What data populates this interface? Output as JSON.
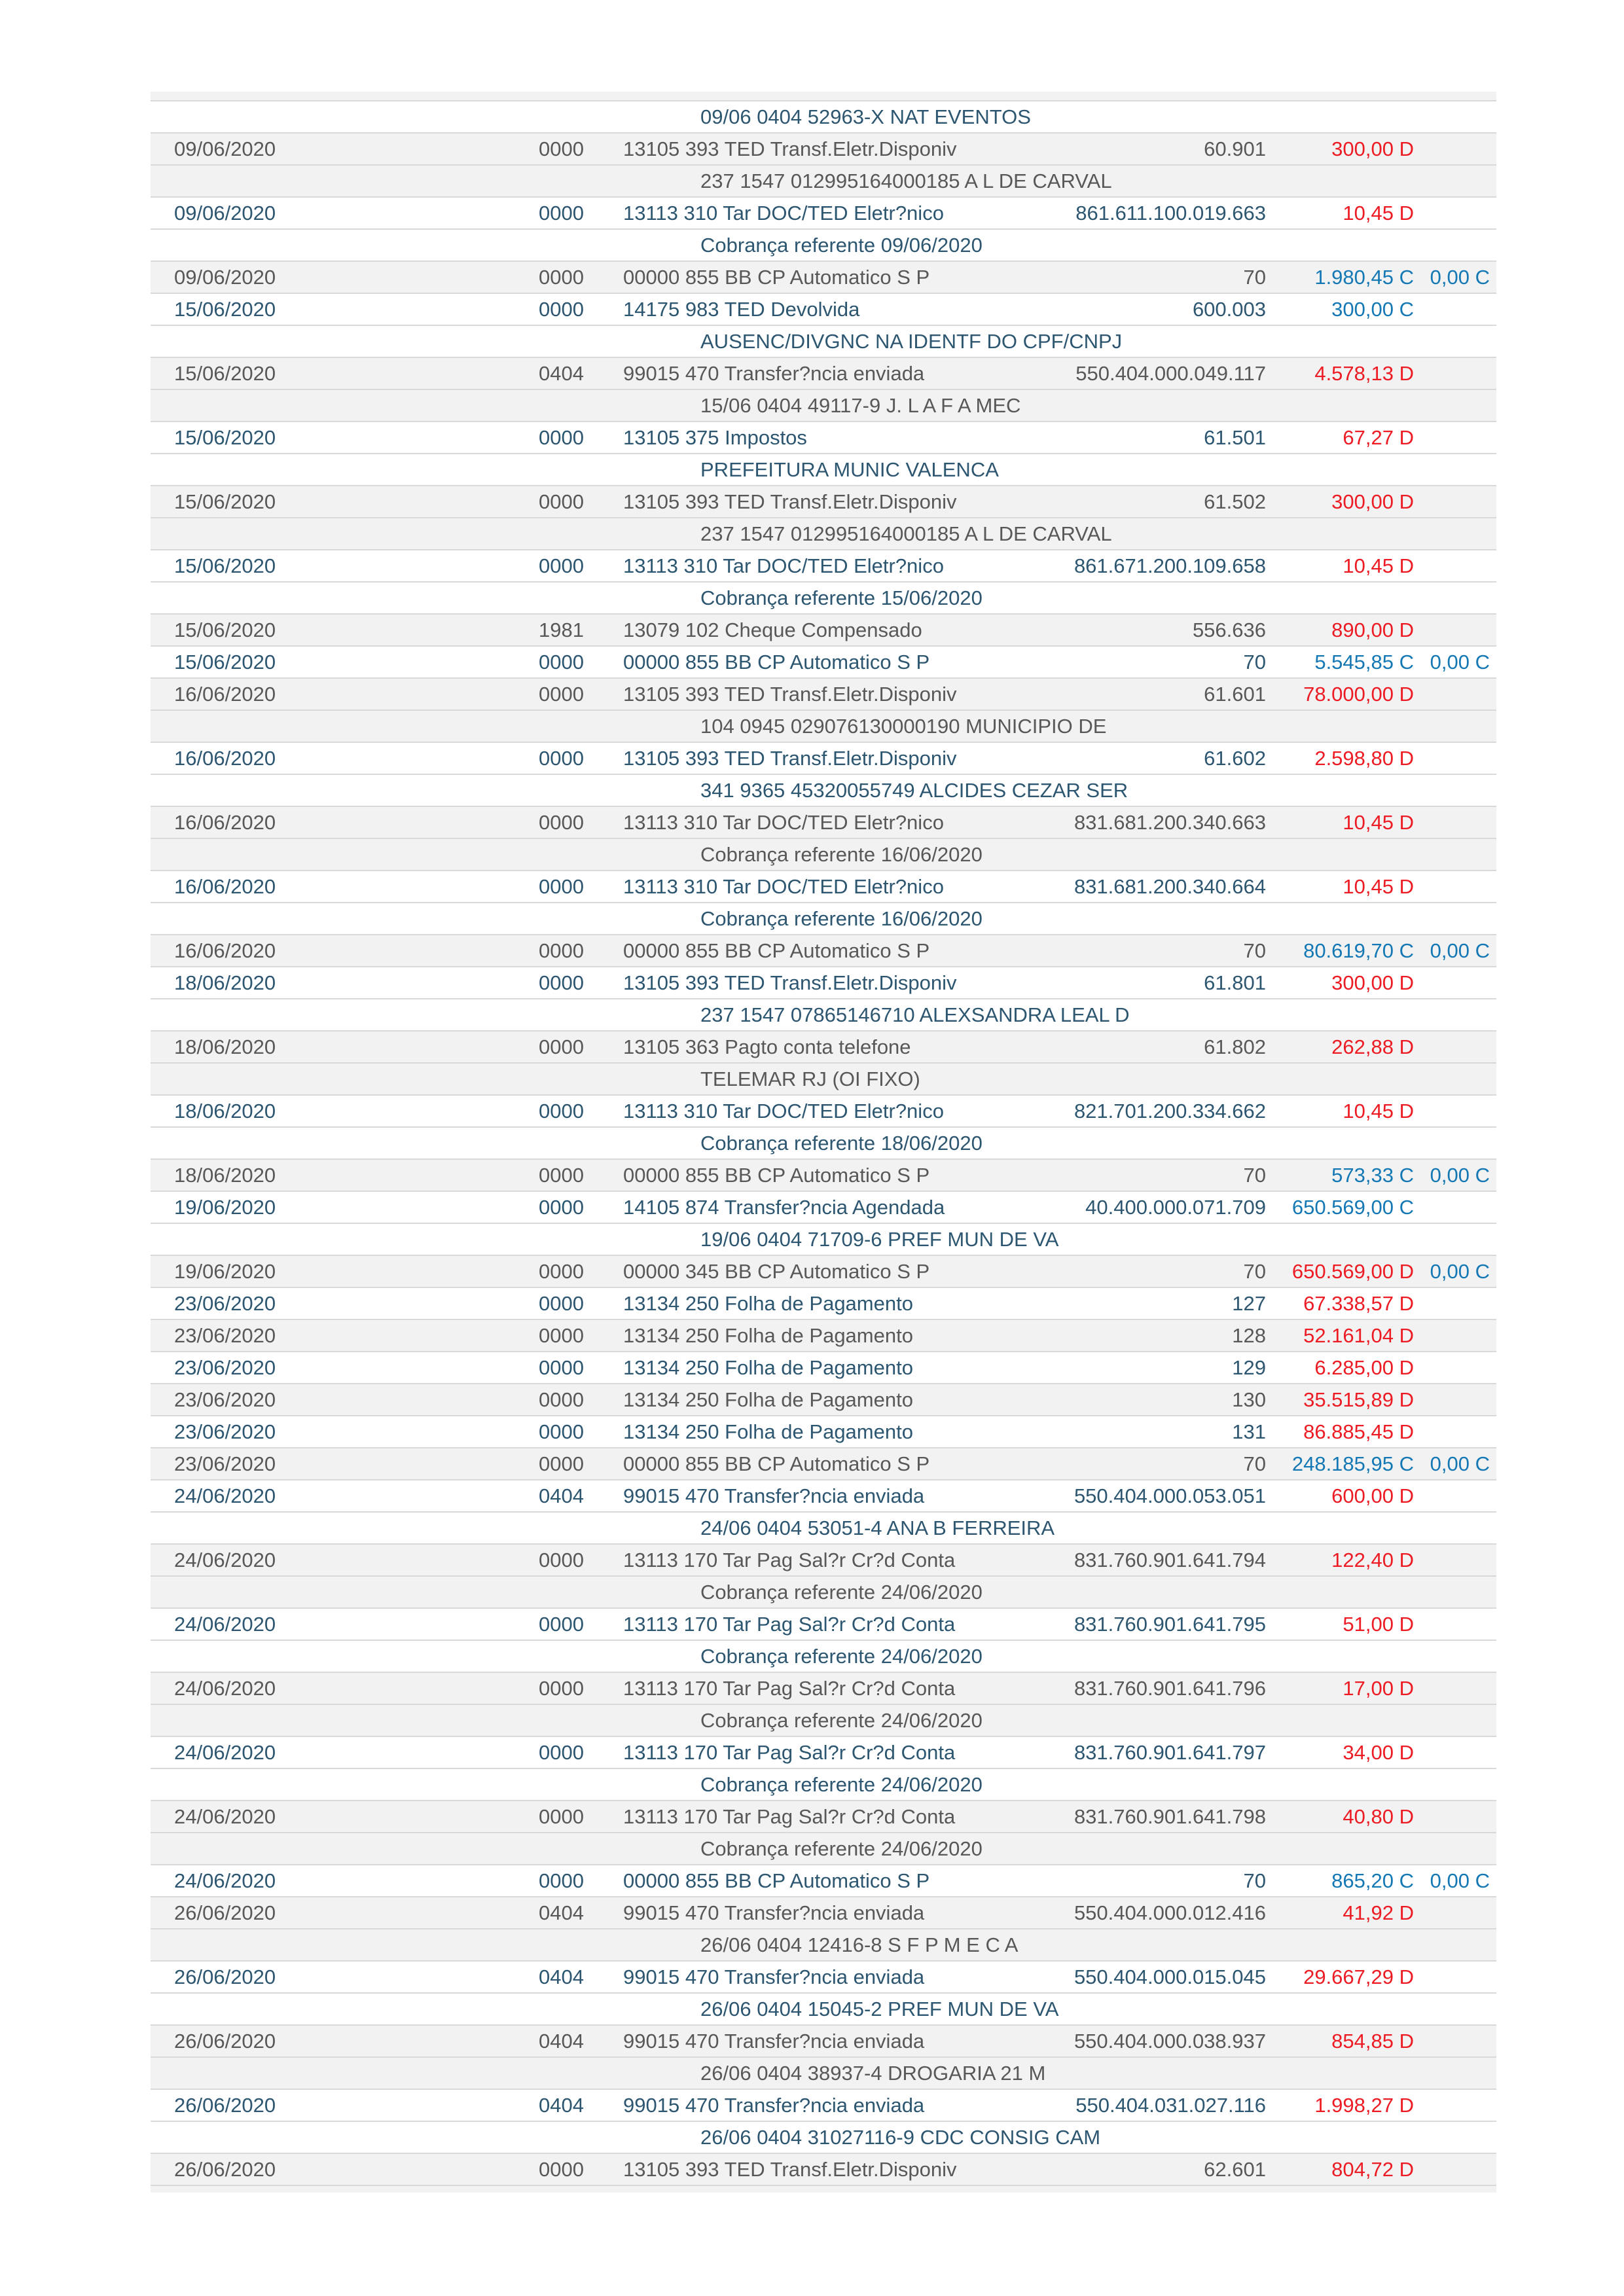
{
  "app": {
    "description": "bank statement transactions table",
    "colors": {
      "row_gray_bg": "#f2f2f2",
      "row_white_bg": "#ffffff",
      "separator": "#d9d9d9",
      "text_navy": "#2d5670",
      "text_gray": "#58585a",
      "debit_red": "#ed1c24",
      "credit_blue": "#1478b5"
    }
  },
  "table": {
    "rows": [
      {
        "kind": "partial",
        "tone": "gray"
      },
      {
        "kind": "info",
        "tone": "blue",
        "text": "09/06 0404 52963-X NAT EVENTOS"
      },
      {
        "kind": "tx",
        "tone": "gray",
        "date": "09/06/2020",
        "agency": "0000",
        "history": "13105 393 TED Transf.Eletr.Disponiv",
        "document": "60.901",
        "value": "300,00 D"
      },
      {
        "kind": "info",
        "tone": "gray",
        "text": "237 1547 012995164000185 A L DE CARVAL"
      },
      {
        "kind": "tx",
        "tone": "blue",
        "date": "09/06/2020",
        "agency": "0000",
        "history": "13113 310 Tar DOC/TED Eletr?nico",
        "document": "861.611.100.019.663",
        "value": "10,45 D"
      },
      {
        "kind": "info",
        "tone": "blue",
        "text": "Cobrança referente 09/06/2020"
      },
      {
        "kind": "tx",
        "tone": "gray",
        "date": "09/06/2020",
        "agency": "0000",
        "history": "00000 855 BB CP Automatico S P",
        "document": "70",
        "value": "1.980,45 C",
        "balance": "0,00 C"
      },
      {
        "kind": "tx",
        "tone": "blue",
        "date": "15/06/2020",
        "agency": "0000",
        "history": "14175 983 TED Devolvida",
        "document": "600.003",
        "value": "300,00 C"
      },
      {
        "kind": "info",
        "tone": "blue",
        "text": "AUSENC/DIVGNC NA IDENTF DO CPF/CNPJ"
      },
      {
        "kind": "tx",
        "tone": "gray",
        "date": "15/06/2020",
        "agency": "0404",
        "history": "99015 470 Transfer?ncia enviada",
        "document": "550.404.000.049.117",
        "value": "4.578,13 D"
      },
      {
        "kind": "info",
        "tone": "gray",
        "text": "15/06 0404 49117-9 J. L A F A MEC"
      },
      {
        "kind": "tx",
        "tone": "blue",
        "date": "15/06/2020",
        "agency": "0000",
        "history": "13105 375 Impostos",
        "document": "61.501",
        "value": "67,27 D"
      },
      {
        "kind": "info",
        "tone": "blue",
        "text": "PREFEITURA MUNIC VALENCA"
      },
      {
        "kind": "tx",
        "tone": "gray",
        "date": "15/06/2020",
        "agency": "0000",
        "history": "13105 393 TED Transf.Eletr.Disponiv",
        "document": "61.502",
        "value": "300,00 D"
      },
      {
        "kind": "info",
        "tone": "gray",
        "text": "237 1547 012995164000185 A L DE CARVAL"
      },
      {
        "kind": "tx",
        "tone": "blue",
        "date": "15/06/2020",
        "agency": "0000",
        "history": "13113 310 Tar DOC/TED Eletr?nico",
        "document": "861.671.200.109.658",
        "value": "10,45 D"
      },
      {
        "kind": "info",
        "tone": "blue",
        "text": "Cobrança referente 15/06/2020"
      },
      {
        "kind": "tx",
        "tone": "gray",
        "date": "15/06/2020",
        "agency": "1981",
        "history": "13079 102 Cheque Compensado",
        "document": "556.636",
        "value": "890,00 D"
      },
      {
        "kind": "tx",
        "tone": "blue",
        "date": "15/06/2020",
        "agency": "0000",
        "history": "00000 855 BB CP Automatico S P",
        "document": "70",
        "value": "5.545,85 C",
        "balance": "0,00 C"
      },
      {
        "kind": "tx",
        "tone": "gray",
        "date": "16/06/2020",
        "agency": "0000",
        "history": "13105 393 TED Transf.Eletr.Disponiv",
        "document": "61.601",
        "value": "78.000,00 D"
      },
      {
        "kind": "info",
        "tone": "gray",
        "text": "104 0945 029076130000190 MUNICIPIO DE"
      },
      {
        "kind": "tx",
        "tone": "blue",
        "date": "16/06/2020",
        "agency": "0000",
        "history": "13105 393 TED Transf.Eletr.Disponiv",
        "document": "61.602",
        "value": "2.598,80 D"
      },
      {
        "kind": "info",
        "tone": "blue",
        "text": "341 9365 45320055749 ALCIDES CEZAR SER"
      },
      {
        "kind": "tx",
        "tone": "gray",
        "date": "16/06/2020",
        "agency": "0000",
        "history": "13113 310 Tar DOC/TED Eletr?nico",
        "document": "831.681.200.340.663",
        "value": "10,45 D"
      },
      {
        "kind": "info",
        "tone": "gray",
        "text": "Cobrança referente 16/06/2020"
      },
      {
        "kind": "tx",
        "tone": "blue",
        "date": "16/06/2020",
        "agency": "0000",
        "history": "13113 310 Tar DOC/TED Eletr?nico",
        "document": "831.681.200.340.664",
        "value": "10,45 D"
      },
      {
        "kind": "info",
        "tone": "blue",
        "text": "Cobrança referente 16/06/2020"
      },
      {
        "kind": "tx",
        "tone": "gray",
        "date": "16/06/2020",
        "agency": "0000",
        "history": "00000 855 BB CP Automatico S P",
        "document": "70",
        "value": "80.619,70 C",
        "balance": "0,00 C"
      },
      {
        "kind": "tx",
        "tone": "blue",
        "date": "18/06/2020",
        "agency": "0000",
        "history": "13105 393 TED Transf.Eletr.Disponiv",
        "document": "61.801",
        "value": "300,00 D"
      },
      {
        "kind": "info",
        "tone": "blue",
        "text": "237 1547 07865146710 ALEXSANDRA LEAL D"
      },
      {
        "kind": "tx",
        "tone": "gray",
        "date": "18/06/2020",
        "agency": "0000",
        "history": "13105 363 Pagto conta telefone",
        "document": "61.802",
        "value": "262,88 D"
      },
      {
        "kind": "info",
        "tone": "gray",
        "text": "TELEMAR RJ (OI FIXO)"
      },
      {
        "kind": "tx",
        "tone": "blue",
        "date": "18/06/2020",
        "agency": "0000",
        "history": "13113 310 Tar DOC/TED Eletr?nico",
        "document": "821.701.200.334.662",
        "value": "10,45 D"
      },
      {
        "kind": "info",
        "tone": "blue",
        "text": "Cobrança referente 18/06/2020"
      },
      {
        "kind": "tx",
        "tone": "gray",
        "date": "18/06/2020",
        "agency": "0000",
        "history": "00000 855 BB CP Automatico S P",
        "document": "70",
        "value": "573,33 C",
        "balance": "0,00 C"
      },
      {
        "kind": "tx",
        "tone": "blue",
        "date": "19/06/2020",
        "agency": "0000",
        "history": "14105 874 Transfer?ncia Agendada",
        "document": "40.400.000.071.709",
        "value": "650.569,00 C"
      },
      {
        "kind": "info",
        "tone": "blue",
        "text": "19/06 0404 71709-6 PREF MUN DE VA"
      },
      {
        "kind": "tx",
        "tone": "gray",
        "date": "19/06/2020",
        "agency": "0000",
        "history": "00000 345 BB CP Automatico S P",
        "document": "70",
        "value": "650.569,00 D",
        "balance": "0,00 C"
      },
      {
        "kind": "tx",
        "tone": "blue",
        "date": "23/06/2020",
        "agency": "0000",
        "history": "13134 250 Folha de Pagamento",
        "document": "127",
        "value": "67.338,57 D"
      },
      {
        "kind": "tx",
        "tone": "gray",
        "date": "23/06/2020",
        "agency": "0000",
        "history": "13134 250 Folha de Pagamento",
        "document": "128",
        "value": "52.161,04 D"
      },
      {
        "kind": "tx",
        "tone": "blue",
        "date": "23/06/2020",
        "agency": "0000",
        "history": "13134 250 Folha de Pagamento",
        "document": "129",
        "value": "6.285,00 D"
      },
      {
        "kind": "tx",
        "tone": "gray",
        "date": "23/06/2020",
        "agency": "0000",
        "history": "13134 250 Folha de Pagamento",
        "document": "130",
        "value": "35.515,89 D"
      },
      {
        "kind": "tx",
        "tone": "blue",
        "date": "23/06/2020",
        "agency": "0000",
        "history": "13134 250 Folha de Pagamento",
        "document": "131",
        "value": "86.885,45 D"
      },
      {
        "kind": "tx",
        "tone": "gray",
        "date": "23/06/2020",
        "agency": "0000",
        "history": "00000 855 BB CP Automatico S P",
        "document": "70",
        "value": "248.185,95 C",
        "balance": "0,00 C"
      },
      {
        "kind": "tx",
        "tone": "blue",
        "date": "24/06/2020",
        "agency": "0404",
        "history": "99015 470 Transfer?ncia enviada",
        "document": "550.404.000.053.051",
        "value": "600,00 D"
      },
      {
        "kind": "info",
        "tone": "blue",
        "text": "24/06 0404 53051-4 ANA B FERREIRA"
      },
      {
        "kind": "tx",
        "tone": "gray",
        "date": "24/06/2020",
        "agency": "0000",
        "history": "13113 170 Tar Pag Sal?r Cr?d Conta",
        "document": "831.760.901.641.794",
        "value": "122,40 D"
      },
      {
        "kind": "info",
        "tone": "gray",
        "text": "Cobrança referente 24/06/2020"
      },
      {
        "kind": "tx",
        "tone": "blue",
        "date": "24/06/2020",
        "agency": "0000",
        "history": "13113 170 Tar Pag Sal?r Cr?d Conta",
        "document": "831.760.901.641.795",
        "value": "51,00 D"
      },
      {
        "kind": "info",
        "tone": "blue",
        "text": "Cobrança referente 24/06/2020"
      },
      {
        "kind": "tx",
        "tone": "gray",
        "date": "24/06/2020",
        "agency": "0000",
        "history": "13113 170 Tar Pag Sal?r Cr?d Conta",
        "document": "831.760.901.641.796",
        "value": "17,00 D"
      },
      {
        "kind": "info",
        "tone": "gray",
        "text": "Cobrança referente 24/06/2020"
      },
      {
        "kind": "tx",
        "tone": "blue",
        "date": "24/06/2020",
        "agency": "0000",
        "history": "13113 170 Tar Pag Sal?r Cr?d Conta",
        "document": "831.760.901.641.797",
        "value": "34,00 D"
      },
      {
        "kind": "info",
        "tone": "blue",
        "text": "Cobrança referente 24/06/2020"
      },
      {
        "kind": "tx",
        "tone": "gray",
        "date": "24/06/2020",
        "agency": "0000",
        "history": "13113 170 Tar Pag Sal?r Cr?d Conta",
        "document": "831.760.901.641.798",
        "value": "40,80 D"
      },
      {
        "kind": "info",
        "tone": "gray",
        "text": "Cobrança referente 24/06/2020"
      },
      {
        "kind": "tx",
        "tone": "blue",
        "date": "24/06/2020",
        "agency": "0000",
        "history": "00000 855 BB CP Automatico S P",
        "document": "70",
        "value": "865,20 C",
        "balance": "0,00 C"
      },
      {
        "kind": "tx",
        "tone": "gray",
        "date": "26/06/2020",
        "agency": "0404",
        "history": "99015 470 Transfer?ncia enviada",
        "document": "550.404.000.012.416",
        "value": "41,92 D"
      },
      {
        "kind": "info",
        "tone": "gray",
        "text": "26/06 0404 12416-8 S F P M E C A"
      },
      {
        "kind": "tx",
        "tone": "blue",
        "date": "26/06/2020",
        "agency": "0404",
        "history": "99015 470 Transfer?ncia enviada",
        "document": "550.404.000.015.045",
        "value": "29.667,29 D"
      },
      {
        "kind": "info",
        "tone": "blue",
        "text": "26/06 0404 15045-2 PREF MUN DE VA"
      },
      {
        "kind": "tx",
        "tone": "gray",
        "date": "26/06/2020",
        "agency": "0404",
        "history": "99015 470 Transfer?ncia enviada",
        "document": "550.404.000.038.937",
        "value": "854,85 D"
      },
      {
        "kind": "info",
        "tone": "gray",
        "text": "26/06 0404 38937-4 DROGARIA 21 M"
      },
      {
        "kind": "tx",
        "tone": "blue",
        "date": "26/06/2020",
        "agency": "0404",
        "history": "99015 470 Transfer?ncia enviada",
        "document": "550.404.031.027.116",
        "value": "1.998,27 D"
      },
      {
        "kind": "info",
        "tone": "blue",
        "text": "26/06 0404 31027116-9 CDC CONSIG CAM"
      },
      {
        "kind": "tx",
        "tone": "gray",
        "date": "26/06/2020",
        "agency": "0000",
        "history": "13105 393 TED Transf.Eletr.Disponiv",
        "document": "62.601",
        "value": "804,72 D"
      },
      {
        "kind": "partial",
        "tone": "gray"
      }
    ]
  }
}
